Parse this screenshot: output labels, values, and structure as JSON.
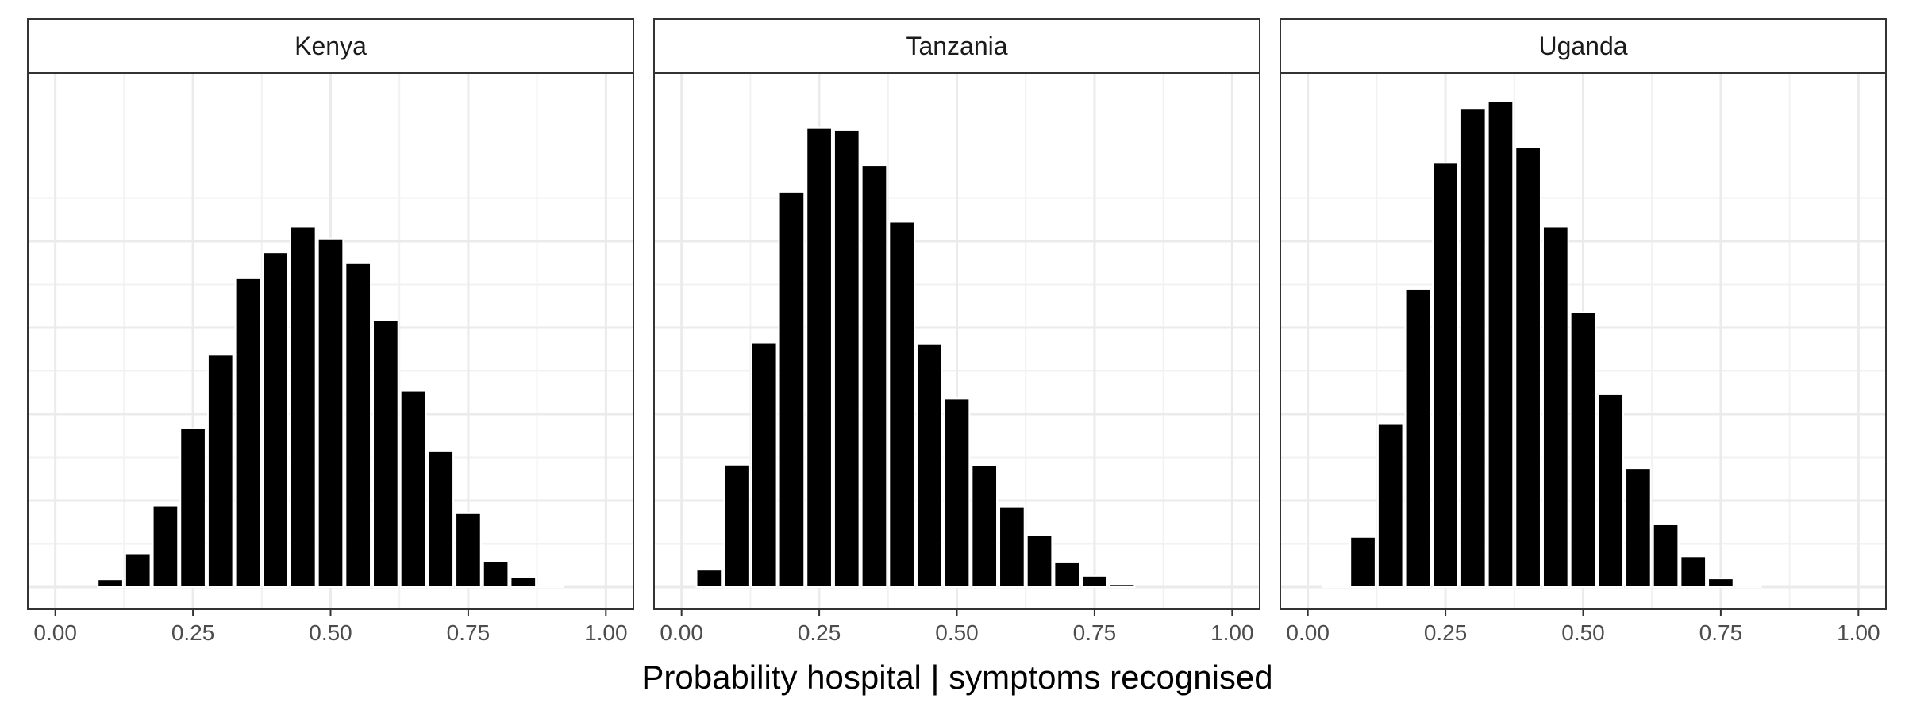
{
  "chart_data": {
    "type": "bar",
    "layout": "facet-row",
    "xlabel": "Probability hospital | symptoms recognised",
    "ylabel": "",
    "xlim": [
      -0.05,
      1.05
    ],
    "ylim": [
      0,
      1.0
    ],
    "x_ticks": [
      0,
      0.25,
      0.5,
      0.75,
      1.0
    ],
    "x_tick_labels": [
      "0.00",
      "0.25",
      "0.50",
      "0.75",
      "1.00"
    ],
    "y_ticks": [
      0,
      0.2,
      0.4,
      0.6,
      0.8
    ],
    "y_tick_labels_visible": false,
    "grid": true,
    "bar_color": "#000000",
    "bin_width": 0.05,
    "facets": [
      {
        "name": "Kenya",
        "x": [
          0.1,
          0.15,
          0.2,
          0.25,
          0.3,
          0.35,
          0.4,
          0.45,
          0.5,
          0.55,
          0.6,
          0.65,
          0.7,
          0.75,
          0.8,
          0.85,
          0.9
        ],
        "values": [
          0.018,
          0.078,
          0.188,
          0.367,
          0.537,
          0.714,
          0.774,
          0.834,
          0.806,
          0.749,
          0.617,
          0.454,
          0.314,
          0.171,
          0.059,
          0.023,
          0.003
        ]
      },
      {
        "name": "Tanzania",
        "x": [
          0.05,
          0.1,
          0.15,
          0.2,
          0.25,
          0.3,
          0.35,
          0.4,
          0.45,
          0.5,
          0.55,
          0.6,
          0.65,
          0.7,
          0.75,
          0.8
        ],
        "values": [
          0.04,
          0.283,
          0.566,
          0.914,
          1.063,
          1.057,
          0.976,
          0.845,
          0.562,
          0.436,
          0.281,
          0.186,
          0.121,
          0.057,
          0.026,
          0.005
        ]
      },
      {
        "name": "Uganda",
        "x": [
          0.05,
          0.1,
          0.15,
          0.2,
          0.25,
          0.3,
          0.35,
          0.4,
          0.45,
          0.5,
          0.55,
          0.6,
          0.65,
          0.7,
          0.75,
          0.8
        ],
        "values": [
          0.003,
          0.116,
          0.377,
          0.69,
          0.981,
          1.106,
          1.124,
          1.017,
          0.834,
          0.636,
          0.446,
          0.275,
          0.145,
          0.071,
          0.02,
          0.002
        ]
      }
    ]
  }
}
